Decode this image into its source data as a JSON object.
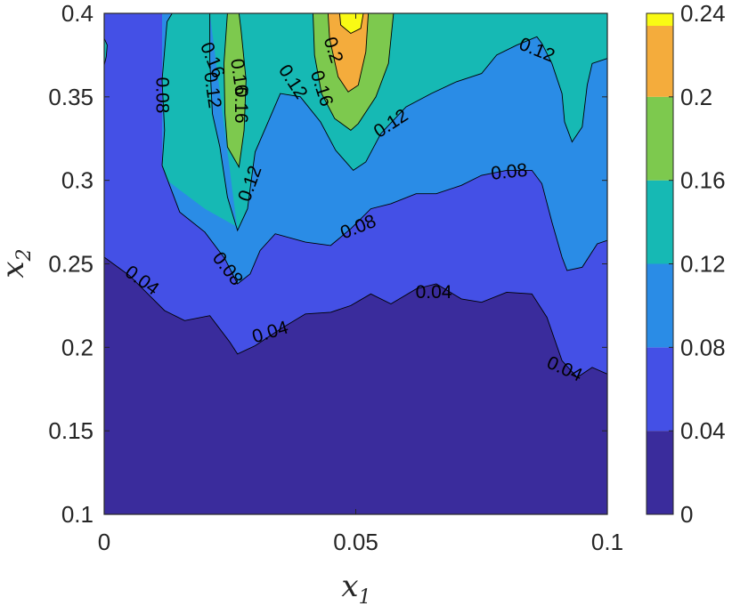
{
  "chart_data": {
    "type": "contourf",
    "xlabel": "x",
    "xlabel_sub": "1",
    "ylabel": "x",
    "ylabel_sub": "2",
    "xlim": [
      0,
      0.1
    ],
    "ylim": [
      0.1,
      0.4
    ],
    "x_ticks": [
      "0",
      "0.05",
      "0.1"
    ],
    "y_ticks": [
      "0.1",
      "0.15",
      "0.2",
      "0.25",
      "0.3",
      "0.35",
      "0.4"
    ],
    "colorbar": {
      "lim": [
        0,
        0.24
      ],
      "ticks": [
        "0",
        "0.04",
        "0.08",
        "0.12",
        "0.16",
        "0.2",
        "0.24"
      ],
      "colormap": "parula"
    },
    "levels": [
      0,
      0.04,
      0.08,
      0.12,
      0.16,
      0.2,
      0.24
    ],
    "level_colors": [
      "#3a2c9c",
      "#4450e6",
      "#2a8ce6",
      "#16b9b4",
      "#7dc94e",
      "#f4ac3c",
      "#f9fa14"
    ],
    "contour_lines": [
      {
        "level": 0.04,
        "points": [
          [
            0,
            0.254
          ],
          [
            0.005,
            0.243
          ],
          [
            0.012,
            0.222
          ],
          [
            0.016,
            0.216
          ],
          [
            0.021,
            0.219
          ],
          [
            0.025,
            0.203
          ],
          [
            0.0265,
            0.196
          ],
          [
            0.03,
            0.201
          ],
          [
            0.035,
            0.211
          ],
          [
            0.04,
            0.22
          ],
          [
            0.045,
            0.221
          ],
          [
            0.049,
            0.225
          ],
          [
            0.053,
            0.232
          ],
          [
            0.057,
            0.226
          ],
          [
            0.062,
            0.235
          ],
          [
            0.066,
            0.238
          ],
          [
            0.071,
            0.229
          ],
          [
            0.075,
            0.227
          ],
          [
            0.08,
            0.233
          ],
          [
            0.085,
            0.232
          ],
          [
            0.088,
            0.218
          ],
          [
            0.091,
            0.192
          ],
          [
            0.094,
            0.182
          ],
          [
            0.097,
            0.188
          ],
          [
            0.1,
            0.184
          ]
        ]
      },
      {
        "level": 0.08,
        "points": [
          [
            0.0115,
            0.309
          ],
          [
            0.015,
            0.281
          ],
          [
            0.02,
            0.269
          ],
          [
            0.024,
            0.253
          ],
          [
            0.0265,
            0.238
          ],
          [
            0.029,
            0.244
          ],
          [
            0.031,
            0.258
          ],
          [
            0.034,
            0.268
          ],
          [
            0.04,
            0.263
          ],
          [
            0.045,
            0.261
          ],
          [
            0.049,
            0.271
          ],
          [
            0.053,
            0.283
          ],
          [
            0.057,
            0.286
          ],
          [
            0.062,
            0.292
          ],
          [
            0.066,
            0.292
          ],
          [
            0.071,
            0.297
          ],
          [
            0.075,
            0.303
          ],
          [
            0.08,
            0.306
          ],
          [
            0.085,
            0.306
          ],
          [
            0.087,
            0.298
          ],
          [
            0.089,
            0.275
          ],
          [
            0.091,
            0.254
          ],
          [
            0.092,
            0.246
          ],
          [
            0.095,
            0.248
          ],
          [
            0.098,
            0.262
          ],
          [
            0.1,
            0.264
          ]
        ]
      },
      {
        "level": 0.12,
        "points": [
          [
            0.0115,
            0.309
          ],
          [
            0.012,
            0.33
          ],
          [
            0.0115,
            0.36
          ],
          [
            0.0125,
            0.395
          ],
          [
            0.0135,
            0.4
          ]
        ]
      },
      {
        "level": 0.12,
        "points": [
          [
            0.021,
            0.4
          ],
          [
            0.021,
            0.372
          ],
          [
            0.0215,
            0.34
          ],
          [
            0.023,
            0.32
          ],
          [
            0.0245,
            0.29
          ],
          [
            0.0265,
            0.27
          ],
          [
            0.0285,
            0.283
          ],
          [
            0.029,
            0.295
          ],
          [
            0.03,
            0.317
          ],
          [
            0.033,
            0.338
          ],
          [
            0.035,
            0.352
          ],
          [
            0.039,
            0.35
          ],
          [
            0.043,
            0.335
          ],
          [
            0.046,
            0.318
          ],
          [
            0.0495,
            0.306
          ],
          [
            0.052,
            0.311
          ],
          [
            0.055,
            0.328
          ],
          [
            0.06,
            0.344
          ],
          [
            0.065,
            0.352
          ],
          [
            0.07,
            0.359
          ],
          [
            0.075,
            0.364
          ],
          [
            0.078,
            0.375
          ],
          [
            0.082,
            0.381
          ],
          [
            0.086,
            0.386
          ],
          [
            0.087,
            0.382
          ],
          [
            0.089,
            0.37
          ],
          [
            0.091,
            0.352
          ],
          [
            0.0915,
            0.335
          ],
          [
            0.093,
            0.323
          ],
          [
            0.095,
            0.332
          ],
          [
            0.096,
            0.357
          ],
          [
            0.097,
            0.37
          ],
          [
            0.1,
            0.373
          ]
        ]
      },
      {
        "level": 0.16,
        "points": [
          [
            0.0245,
            0.4
          ],
          [
            0.0238,
            0.37
          ],
          [
            0.024,
            0.34
          ],
          [
            0.0245,
            0.32
          ],
          [
            0.0268,
            0.308
          ],
          [
            0.0278,
            0.33
          ],
          [
            0.0282,
            0.36
          ],
          [
            0.0272,
            0.39
          ],
          [
            0.0268,
            0.4
          ]
        ]
      },
      {
        "level": 0.16,
        "points": [
          [
            0.0415,
            0.4
          ],
          [
            0.0418,
            0.375
          ],
          [
            0.0432,
            0.352
          ],
          [
            0.0458,
            0.337
          ],
          [
            0.049,
            0.33
          ],
          [
            0.0505,
            0.334
          ],
          [
            0.054,
            0.35
          ],
          [
            0.0565,
            0.37
          ],
          [
            0.0575,
            0.4
          ]
        ]
      },
      {
        "level": 0.2,
        "points": [
          [
            0.0445,
            0.4
          ],
          [
            0.0448,
            0.385
          ],
          [
            0.0465,
            0.362
          ],
          [
            0.0485,
            0.353
          ],
          [
            0.0505,
            0.357
          ],
          [
            0.052,
            0.377
          ],
          [
            0.0525,
            0.4
          ]
        ]
      },
      {
        "level": 0.24,
        "points": [
          [
            0.0468,
            0.4
          ],
          [
            0.047,
            0.393
          ],
          [
            0.049,
            0.388
          ],
          [
            0.051,
            0.391
          ],
          [
            0.0515,
            0.4
          ]
        ]
      },
      {
        "level": 0.12,
        "points": [
          [
            0,
            0.369
          ],
          [
            0.0004,
            0.374
          ],
          [
            0.0006,
            0.381
          ],
          [
            0,
            0.385
          ]
        ]
      }
    ],
    "contour_labels": [
      {
        "text": "0.04",
        "x": 0.0075,
        "y": 0.24,
        "angle": 36
      },
      {
        "text": "0.04",
        "x": 0.033,
        "y": 0.209,
        "angle": -17
      },
      {
        "text": "0.04",
        "x": 0.0655,
        "y": 0.233,
        "angle": 0
      },
      {
        "text": "0.04",
        "x": 0.0915,
        "y": 0.187,
        "angle": 24
      },
      {
        "text": "0.08",
        "x": 0.0115,
        "y": 0.351,
        "angle": 90
      },
      {
        "text": "0.08",
        "x": 0.0245,
        "y": 0.247,
        "angle": 52
      },
      {
        "text": "0.08",
        "x": 0.0505,
        "y": 0.272,
        "angle": -22
      },
      {
        "text": "0.08",
        "x": 0.0805,
        "y": 0.305,
        "angle": -6
      },
      {
        "text": "0.12",
        "x": 0.0215,
        "y": 0.354,
        "angle": 82
      },
      {
        "text": "0.12",
        "x": 0.029,
        "y": 0.298,
        "angle": -70
      },
      {
        "text": "0.12",
        "x": 0.0375,
        "y": 0.359,
        "angle": 57
      },
      {
        "text": "0.12",
        "x": 0.057,
        "y": 0.334,
        "angle": -33
      },
      {
        "text": "0.12",
        "x": 0.086,
        "y": 0.378,
        "angle": 22
      },
      {
        "text": "0.16",
        "x": 0.0215,
        "y": 0.372,
        "angle": 68
      },
      {
        "text": "0.16",
        "x": 0.0268,
        "y": 0.362,
        "angle": 82
      },
      {
        "text": "0.16",
        "x": 0.0272,
        "y": 0.345,
        "angle": 90
      },
      {
        "text": "0.16",
        "x": 0.0432,
        "y": 0.355,
        "angle": 72
      },
      {
        "text": "0.2",
        "x": 0.0455,
        "y": 0.378,
        "angle": 72
      }
    ]
  }
}
